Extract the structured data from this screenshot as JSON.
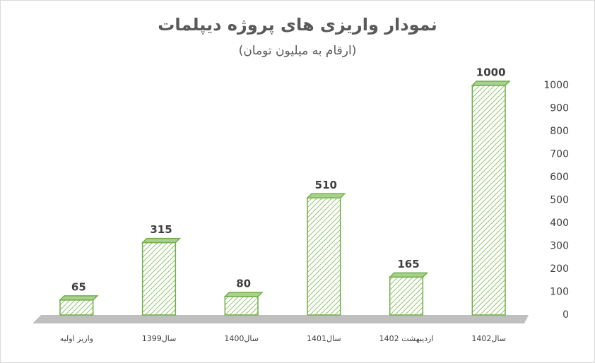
{
  "chart_data": {
    "type": "bar",
    "title": "نمودار واریزی های پروژه دیپلمات",
    "subtitle": "(ارقام به میلیون تومان)",
    "categories": [
      "واریز اولیه",
      "سال1399",
      "سال1400",
      "سال1401",
      "اردیبهشت 1402",
      "سال1402"
    ],
    "values": [
      65,
      315,
      80,
      510,
      165,
      1000
    ],
    "color": "#70ad47",
    "ylim": [
      0,
      1000
    ],
    "yticks": [
      0,
      100,
      200,
      300,
      400,
      500,
      600,
      700,
      800,
      900,
      1000
    ],
    "y_axis_side": "right",
    "grid": false
  }
}
